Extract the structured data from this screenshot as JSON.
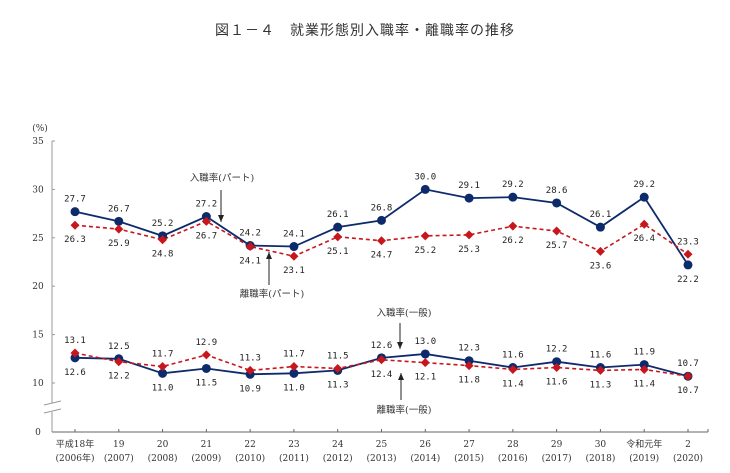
{
  "title": "図１－４　就業形態別入職率・離職率の推移",
  "chart_data": {
    "type": "line",
    "title": "図１－４　就業形態別入職率・離職率の推移",
    "ylabel": "(%)",
    "xlabel": "",
    "ylim": [
      0,
      35
    ],
    "y_ticks": [
      0,
      10,
      15,
      20,
      25,
      30,
      35
    ],
    "y_axis_break": [
      0,
      10
    ],
    "grid": false,
    "categories": [
      [
        "平成18年",
        "(2006年)"
      ],
      [
        "19",
        "(2007)"
      ],
      [
        "20",
        "(2008)"
      ],
      [
        "21",
        "(2009)"
      ],
      [
        "22",
        "(2010)"
      ],
      [
        "23",
        "(2011)"
      ],
      [
        "24",
        "(2012)"
      ],
      [
        "25",
        "(2013)"
      ],
      [
        "26",
        "(2014)"
      ],
      [
        "27",
        "(2015)"
      ],
      [
        "28",
        "(2016)"
      ],
      [
        "29",
        "(2017)"
      ],
      [
        "30",
        "(2018)"
      ],
      [
        "令和元年",
        "(2019)"
      ],
      [
        "2",
        "(2020)"
      ]
    ],
    "series": [
      {
        "name": "入職率(パート)",
        "style": "solid-circle",
        "color": "#0d2a6b",
        "values": [
          27.7,
          26.7,
          25.2,
          27.2,
          24.2,
          24.1,
          26.1,
          26.8,
          30.0,
          29.1,
          29.2,
          28.6,
          26.1,
          29.2,
          22.2
        ]
      },
      {
        "name": "離職率(パート)",
        "style": "dashed-diamond",
        "color": "#c8161d",
        "values": [
          26.3,
          25.9,
          24.8,
          26.7,
          24.1,
          23.1,
          25.1,
          24.7,
          25.2,
          25.3,
          26.2,
          25.7,
          23.6,
          26.4,
          23.3
        ]
      },
      {
        "name": "入職率(一般)",
        "style": "solid-circle",
        "color": "#0d2a6b",
        "values": [
          12.6,
          12.5,
          11.0,
          11.5,
          10.9,
          11.0,
          11.3,
          12.6,
          13.0,
          12.3,
          11.6,
          12.2,
          11.6,
          11.9,
          10.7
        ]
      },
      {
        "name": "離職率(一般)",
        "style": "dashed-diamond",
        "color": "#c8161d",
        "values": [
          13.1,
          12.2,
          11.7,
          12.9,
          11.3,
          11.7,
          11.5,
          12.4,
          12.1,
          11.8,
          11.4,
          11.6,
          11.3,
          11.4,
          10.7
        ]
      }
    ],
    "annotations": [
      {
        "text": "入職率(パート)",
        "arrow": "down",
        "near_category": 3
      },
      {
        "text": "離職率(パート)",
        "arrow": "up",
        "near_category": 5
      },
      {
        "text": "入職率(一般)",
        "arrow": "down",
        "near_category": 7
      },
      {
        "text": "離職率(一般)",
        "arrow": "up",
        "near_category": 7
      }
    ]
  }
}
